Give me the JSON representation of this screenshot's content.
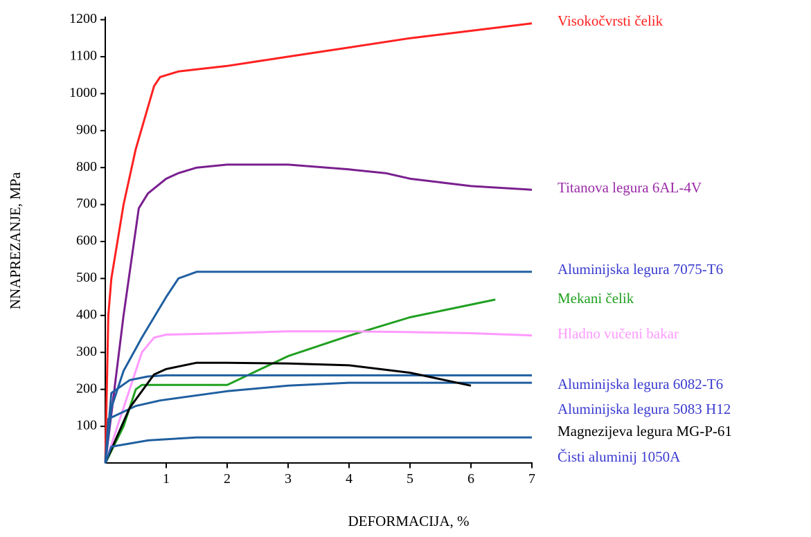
{
  "chart_data": {
    "type": "line",
    "xlabel": "DEFORMACIJA, %",
    "ylabel": "NNAPREZANJE, MPa",
    "xlim": [
      0,
      7
    ],
    "xticks": [
      1,
      2,
      3,
      4,
      5,
      6,
      7
    ],
    "ylim": [
      0,
      1200
    ],
    "yticks": [
      100,
      200,
      300,
      400,
      500,
      600,
      700,
      800,
      900,
      1000,
      1100,
      1200
    ],
    "series": [
      {
        "name": "Visokočvrsti čelik",
        "color": "#ff2020",
        "label_color": "#ff2020",
        "x": [
          0,
          0.05,
          0.1,
          0.3,
          0.5,
          0.8,
          0.9,
          1.2,
          2,
          3,
          4,
          5,
          6,
          7
        ],
        "values": [
          0,
          400,
          500,
          700,
          850,
          1020,
          1045,
          1060,
          1075,
          1100,
          1125,
          1150,
          1170,
          1190
        ]
      },
      {
        "name": "Titanova legura 6AL-4V",
        "color": "#7a1f8f",
        "label_color": "#9a2aa8",
        "x": [
          0,
          0.3,
          0.55,
          0.7,
          1,
          1.2,
          1.5,
          2,
          3,
          4,
          4.6,
          5,
          6,
          7
        ],
        "values": [
          0,
          400,
          690,
          730,
          770,
          785,
          800,
          808,
          808,
          795,
          785,
          770,
          750,
          740
        ]
      },
      {
        "name": "Aluminijska legura 7075-T6",
        "color": "#1f5fa0",
        "label_color": "#3a3ad0",
        "x": [
          0,
          0.1,
          0.3,
          0.6,
          1,
          1.2,
          1.5,
          2,
          7
        ],
        "values": [
          0,
          150,
          250,
          340,
          450,
          500,
          518,
          518,
          518
        ]
      },
      {
        "name": "Mekani čelik",
        "color": "#20a020",
        "label_color": "#20a020",
        "x": [
          0,
          0.3,
          0.5,
          0.6,
          1,
          2,
          3,
          4,
          5,
          6.4
        ],
        "values": [
          0,
          100,
          200,
          212,
          212,
          212,
          290,
          345,
          395,
          443
        ]
      },
      {
        "name": "Hladno vučeni bakar",
        "color": "#ff99ff",
        "label_color": "#ff99ff",
        "x": [
          0,
          0.3,
          0.6,
          0.8,
          1,
          2,
          3,
          4,
          5,
          6,
          7
        ],
        "values": [
          0,
          150,
          300,
          340,
          348,
          352,
          357,
          357,
          355,
          352,
          346
        ]
      },
      {
        "name": "Aluminijska legura 6082-T6",
        "color": "#1f5fa0",
        "label_color": "#3a3ad0",
        "x": [
          0,
          0.1,
          0.4,
          0.7,
          1,
          7
        ],
        "values": [
          0,
          190,
          225,
          235,
          238,
          238
        ]
      },
      {
        "name": "Aluminijska legura 5083 H12",
        "color": "#1f5fa0",
        "label_color": "#3a3ad0",
        "x": [
          0,
          0.05,
          0.5,
          0.9,
          2,
          3,
          4,
          7
        ],
        "values": [
          0,
          120,
          155,
          170,
          195,
          210,
          218,
          218
        ]
      },
      {
        "name": "Magnezijeva legura MG-P-61",
        "color": "#000000",
        "label_color": "#000000",
        "x": [
          0,
          0.4,
          0.8,
          1,
          1.5,
          2,
          3,
          4,
          5,
          6
        ],
        "values": [
          0,
          150,
          240,
          255,
          272,
          272,
          270,
          265,
          245,
          210
        ]
      },
      {
        "name": "Čisti aluminij 1050A",
        "color": "#1f5fa0",
        "label_color": "#3a3ad0",
        "x": [
          0,
          0.1,
          0.7,
          1.5,
          7
        ],
        "values": [
          0,
          45,
          62,
          70,
          70
        ]
      }
    ]
  }
}
